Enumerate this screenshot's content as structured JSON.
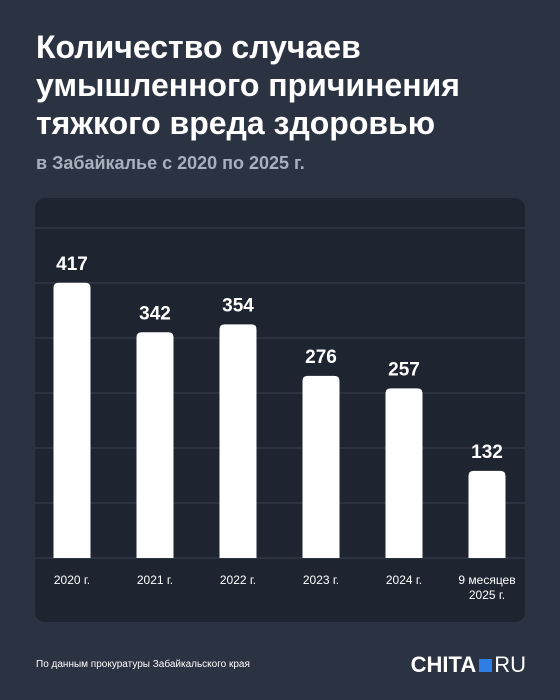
{
  "chart_data": {
    "type": "bar",
    "title": "Количество случаев умышленного причинения тяжкого вреда здоровью",
    "subtitle": "в Забайкалье с 2020 по 2025 г.",
    "categories": [
      "2020 г.",
      "2021 г.",
      "2022 г.",
      "2023 г.",
      "2024 г.",
      "9 месяцев 2025 г."
    ],
    "values": [
      417,
      342,
      354,
      276,
      257,
      132
    ],
    "color": "#ffffff",
    "ylim": [
      0,
      500
    ],
    "source": "По данным прокуратуры Забайкальского края",
    "logo": {
      "left": "CHITA",
      "right": "RU"
    }
  }
}
